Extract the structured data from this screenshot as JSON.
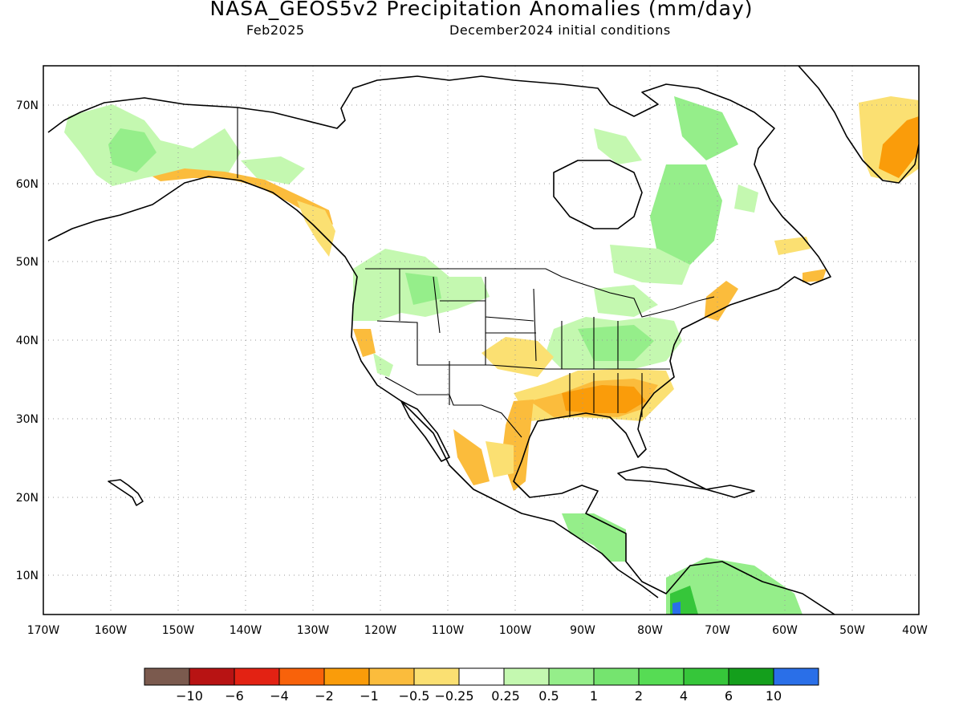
{
  "title": "NASA_GEOS5v2 Precipitation Anomalies (mm/day)",
  "subtitle_left": "Feb2025",
  "subtitle_right": "December2024 initial conditions",
  "lat_labels": [
    "70N",
    "60N",
    "50N",
    "40N",
    "30N",
    "20N",
    "10N"
  ],
  "lon_labels": [
    "170W",
    "160W",
    "150W",
    "140W",
    "130W",
    "120W",
    "110W",
    "100W",
    "90W",
    "80W",
    "70W",
    "60W",
    "50W",
    "40W"
  ],
  "legend": {
    "colors": [
      "#7b5a4e",
      "#b81313",
      "#e32213",
      "#f8620a",
      "#fa9c0a",
      "#fbbc3c",
      "#fbe072",
      "#ffffff",
      "#c4f8b0",
      "#95ee8a",
      "#75e46f",
      "#56dc54",
      "#36c63a",
      "#149f1c",
      "#2a6fe8"
    ],
    "labels": [
      "−10",
      "−6",
      "−4",
      "−2",
      "−1",
      "−0.5",
      "−0.25",
      "0.25",
      "0.5",
      "1",
      "2",
      "4",
      "6",
      "10"
    ]
  }
}
